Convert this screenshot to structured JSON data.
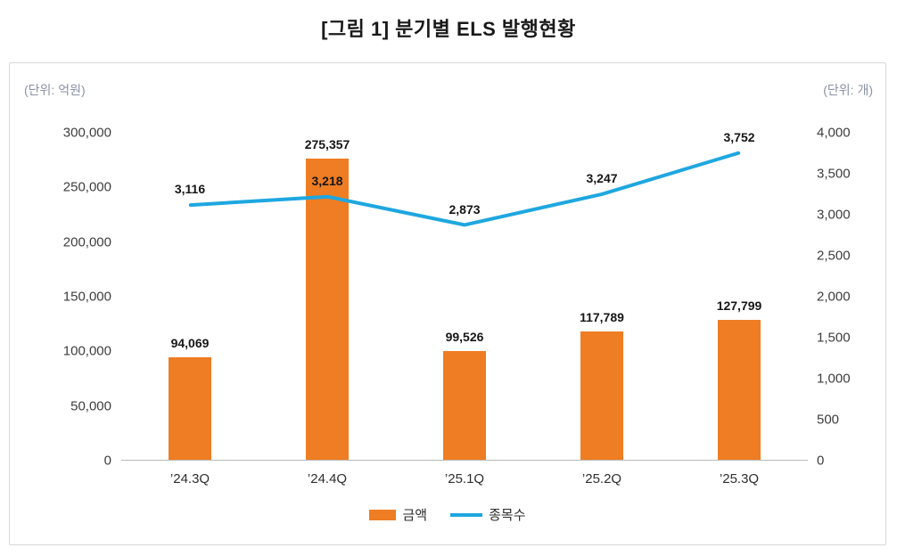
{
  "title": "[그림 1] 분기별 ELS 발행현황",
  "chart_data": {
    "type": "bar+line",
    "categories": [
      "’24.3Q",
      "’24.4Q",
      "’25.1Q",
      "’25.2Q",
      "’25.3Q"
    ],
    "series": [
      {
        "name": "금액",
        "type": "bar",
        "axis": "left",
        "color": "#EE7D23",
        "values": [
          94069,
          275357,
          99526,
          117789,
          127799
        ]
      },
      {
        "name": "종목수",
        "type": "line",
        "axis": "right",
        "color": "#1EA7E0",
        "values": [
          3116,
          3218,
          2873,
          3247,
          3752
        ]
      }
    ],
    "left_axis": {
      "unit": "(단위: 억원)",
      "min": 0,
      "max": 300000,
      "step": 50000
    },
    "right_axis": {
      "unit": "(단위: 개)",
      "min": 0,
      "max": 4000,
      "step": 500
    },
    "grid": false,
    "legend_position": "bottom"
  }
}
